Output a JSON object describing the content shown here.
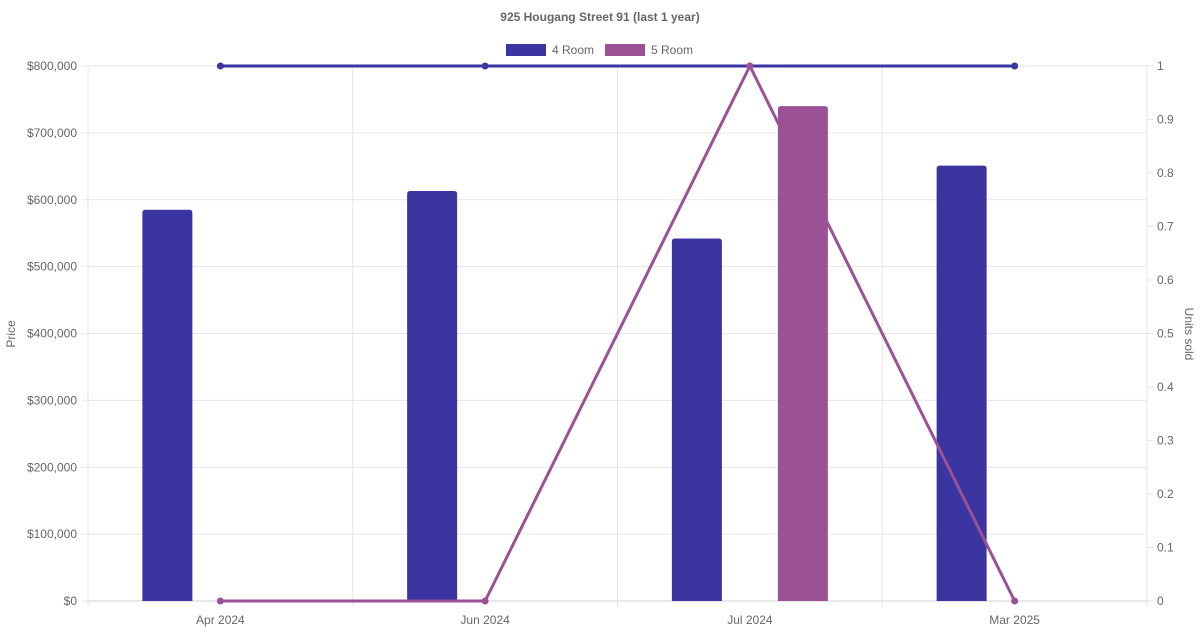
{
  "chart_data": {
    "type": "bar",
    "title": "925 Hougang Street 91 (last 1 year)",
    "categories": [
      "Apr 2024",
      "Jun 2024",
      "Jul 2024",
      "Mar 2025"
    ],
    "y_left": {
      "label": "Price",
      "ticks": [
        "$0",
        "$100,000",
        "$200,000",
        "$300,000",
        "$400,000",
        "$500,000",
        "$600,000",
        "$700,000",
        "$800,000"
      ],
      "range": [
        0,
        800000
      ]
    },
    "y_right": {
      "label": "Units sold",
      "ticks": [
        "0",
        "0.1",
        "0.2",
        "0.3",
        "0.4",
        "0.5",
        "0.6",
        "0.7",
        "0.8",
        "0.9",
        "1"
      ],
      "range": [
        0,
        1
      ]
    },
    "grid": true,
    "legend_position": "top-center",
    "series": [
      {
        "name": "4 Room",
        "color": "#3a35a0",
        "price": [
          585000,
          613000,
          542000,
          651000
        ],
        "units": [
          1,
          1,
          1,
          1
        ]
      },
      {
        "name": "5 Room",
        "color": "#9b5195",
        "price": [
          null,
          null,
          740000,
          null
        ],
        "units": [
          0,
          0,
          1,
          0
        ]
      }
    ]
  }
}
